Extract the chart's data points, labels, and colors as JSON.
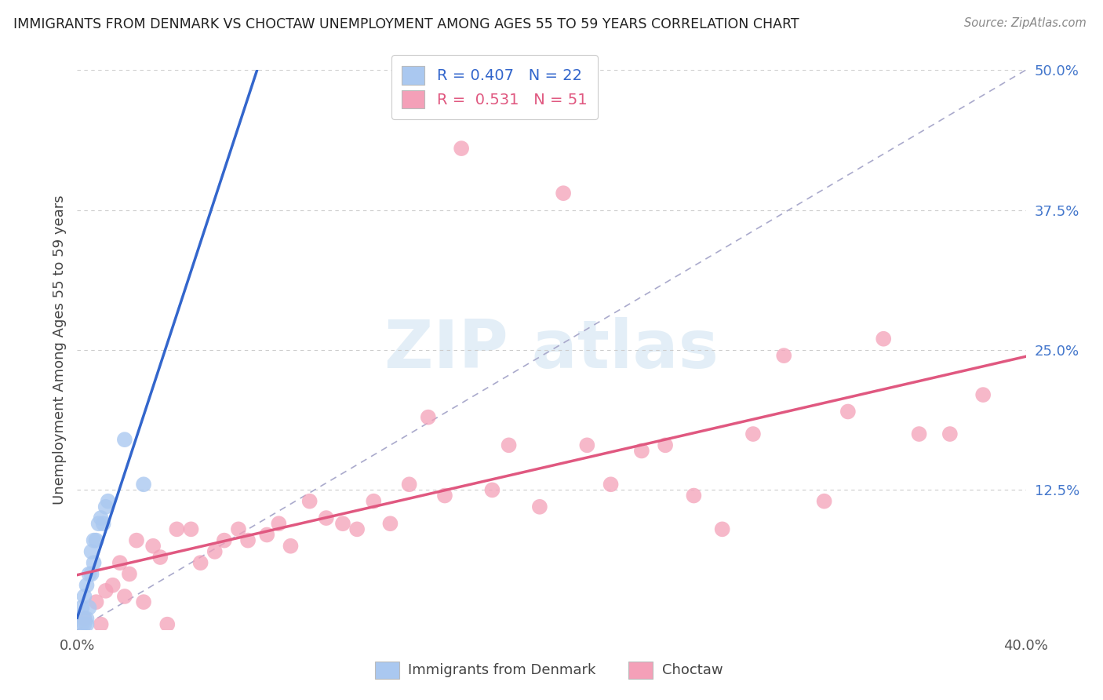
{
  "title": "IMMIGRANTS FROM DENMARK VS CHOCTAW UNEMPLOYMENT AMONG AGES 55 TO 59 YEARS CORRELATION CHART",
  "source": "Source: ZipAtlas.com",
  "ylabel": "Unemployment Among Ages 55 to 59 years",
  "xlabel_denmark": "Immigrants from Denmark",
  "xlabel_choctaw": "Choctaw",
  "xlim": [
    0.0,
    0.4
  ],
  "ylim": [
    0.0,
    0.5
  ],
  "ytick_labels": [
    "12.5%",
    "25.0%",
    "37.5%",
    "50.0%"
  ],
  "yticks": [
    0.125,
    0.25,
    0.375,
    0.5
  ],
  "legend_r_denmark": "0.407",
  "legend_n_denmark": "22",
  "legend_r_choctaw": "0.531",
  "legend_n_choctaw": "51",
  "denmark_color": "#aac8f0",
  "choctaw_color": "#f4a0b8",
  "denmark_line_color": "#3366cc",
  "choctaw_line_color": "#e05880",
  "denmark_points_x": [
    0.002,
    0.002,
    0.003,
    0.003,
    0.003,
    0.004,
    0.004,
    0.004,
    0.005,
    0.005,
    0.006,
    0.006,
    0.007,
    0.007,
    0.008,
    0.009,
    0.01,
    0.011,
    0.012,
    0.013,
    0.02,
    0.028
  ],
  "denmark_points_y": [
    0.005,
    0.02,
    0.005,
    0.01,
    0.03,
    0.005,
    0.01,
    0.04,
    0.02,
    0.05,
    0.05,
    0.07,
    0.06,
    0.08,
    0.08,
    0.095,
    0.1,
    0.095,
    0.11,
    0.115,
    0.17,
    0.13
  ],
  "choctaw_points_x": [
    0.003,
    0.008,
    0.01,
    0.012,
    0.015,
    0.018,
    0.02,
    0.022,
    0.025,
    0.028,
    0.032,
    0.035,
    0.038,
    0.042,
    0.048,
    0.052,
    0.058,
    0.062,
    0.068,
    0.072,
    0.08,
    0.085,
    0.09,
    0.098,
    0.105,
    0.112,
    0.118,
    0.125,
    0.132,
    0.14,
    0.148,
    0.155,
    0.162,
    0.175,
    0.182,
    0.195,
    0.205,
    0.215,
    0.225,
    0.238,
    0.248,
    0.26,
    0.272,
    0.285,
    0.298,
    0.315,
    0.325,
    0.34,
    0.355,
    0.368,
    0.382
  ],
  "choctaw_points_y": [
    0.01,
    0.025,
    0.005,
    0.035,
    0.04,
    0.06,
    0.03,
    0.05,
    0.08,
    0.025,
    0.075,
    0.065,
    0.005,
    0.09,
    0.09,
    0.06,
    0.07,
    0.08,
    0.09,
    0.08,
    0.085,
    0.095,
    0.075,
    0.115,
    0.1,
    0.095,
    0.09,
    0.115,
    0.095,
    0.13,
    0.19,
    0.12,
    0.43,
    0.125,
    0.165,
    0.11,
    0.39,
    0.165,
    0.13,
    0.16,
    0.165,
    0.12,
    0.09,
    0.175,
    0.245,
    0.115,
    0.195,
    0.26,
    0.175,
    0.175,
    0.21
  ],
  "ref_line_x": [
    0.0,
    0.4
  ],
  "ref_line_y": [
    0.0,
    0.5
  ]
}
